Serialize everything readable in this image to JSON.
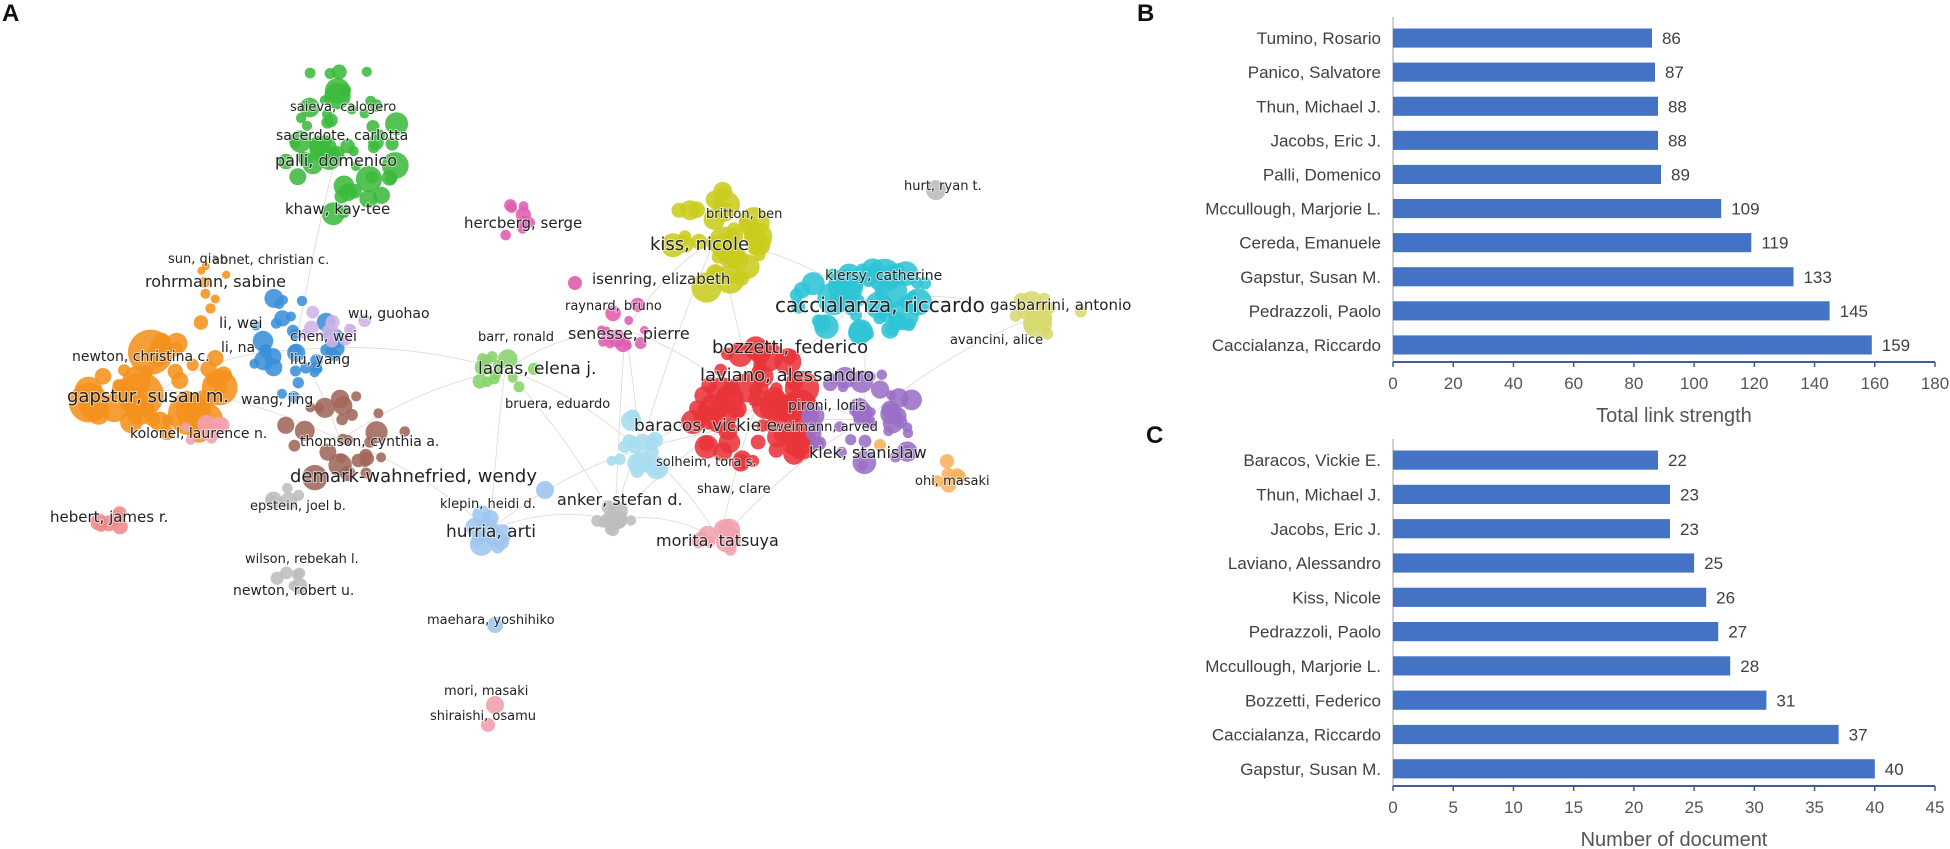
{
  "panels": {
    "a": "A",
    "b": "B",
    "c": "C"
  },
  "network": {
    "colors": {
      "orange": "#f5921e",
      "green": "#3cb93c",
      "blue": "#3a8fd8",
      "red": "#e8343a",
      "cyan": "#2ec4d6",
      "yellow": "#c9cc1e",
      "purple": "#9a6fc6",
      "pink": "#e05cb0",
      "brown": "#a0675a",
      "gray": "#bdbdbd",
      "lightgreen": "#86d46a",
      "lightblue": "#9ec6ef",
      "lightpink": "#f2a0ae",
      "lightcyan": "#a7dcef",
      "lightyellow": "#d8d870",
      "lightorange": "#f7b25b",
      "lavender": "#cfb3e6",
      "salmon": "#ee8a8a"
    },
    "labels": [
      "saieva, calogero",
      "sacerdote, carlotta",
      "palli, domenico",
      "khaw, kay-tee",
      "hercberg, serge",
      "britton, ben",
      "kiss, nicole",
      "hurt, ryan t.",
      "sun, qian",
      "abnet, christian c.",
      "rohrmann, sabine",
      "isenring, elizabeth",
      "klersy, catherine",
      "caccialanza, riccardo",
      "gasbarrini, antonio",
      "raynard, bruno",
      "wu, guohao",
      "li, wei",
      "chen, wei",
      "li, na",
      "barr, ronald",
      "senesse, pierre",
      "avancini, alice",
      "bozzetti, federico",
      "newton, christina c.",
      "liu, yang",
      "ladas, elena j.",
      "laviano, alessandro",
      "gapstur, susan m.",
      "wang, jing",
      "bruera, eduardo",
      "pironi, loris",
      "weimann, arved",
      "kolonel, laurence n.",
      "thomson, cynthia a.",
      "baracos, vickie e.",
      "klek, stanislaw",
      "demark-wahnefried, wendy",
      "solheim, tora s.",
      "ohi, masaki",
      "shaw, clare",
      "anker, stefan d.",
      "epstein, joel b.",
      "klepin, heidi d.",
      "hebert, james r.",
      "hurria, arti",
      "morita, tatsuya",
      "wilson, rebekah l.",
      "newton, robert u.",
      "maehara, yoshihiko",
      "mori, masaki",
      "shiraishi, osamu"
    ]
  },
  "chart_data": [
    {
      "type": "bar",
      "orientation": "horizontal",
      "panel": "B",
      "categories": [
        "Tumino, Rosario",
        "Panico, Salvatore",
        "Thun, Michael J.",
        "Jacobs, Eric J.",
        "Palli, Domenico",
        "Mccullough, Marjorie L.",
        "Cereda, Emanuele",
        "Gapstur, Susan M.",
        "Pedrazzoli, Paolo",
        "Caccialanza, Riccardo"
      ],
      "values": [
        86,
        87,
        88,
        88,
        89,
        109,
        119,
        133,
        145,
        159
      ],
      "xlabel": "Total link strength",
      "xlim": [
        0,
        180
      ],
      "xticks": [
        0,
        20,
        40,
        60,
        80,
        100,
        120,
        140,
        160,
        180
      ],
      "bar_color": "#4472c4"
    },
    {
      "type": "bar",
      "orientation": "horizontal",
      "panel": "C",
      "categories": [
        "Baracos, Vickie E.",
        "Thun, Michael J.",
        "Jacobs, Eric J.",
        "Laviano, Alessandro",
        "Kiss, Nicole",
        "Pedrazzoli, Paolo",
        "Mccullough, Marjorie L.",
        "Bozzetti, Federico",
        "Caccialanza, Riccardo",
        "Gapstur, Susan M."
      ],
      "values": [
        22,
        23,
        23,
        25,
        26,
        27,
        28,
        31,
        37,
        40
      ],
      "xlabel": "Number of document",
      "xlim": [
        0,
        45
      ],
      "xticks": [
        0,
        5,
        10,
        15,
        20,
        25,
        30,
        35,
        40,
        45
      ],
      "bar_color": "#4472c4"
    }
  ]
}
